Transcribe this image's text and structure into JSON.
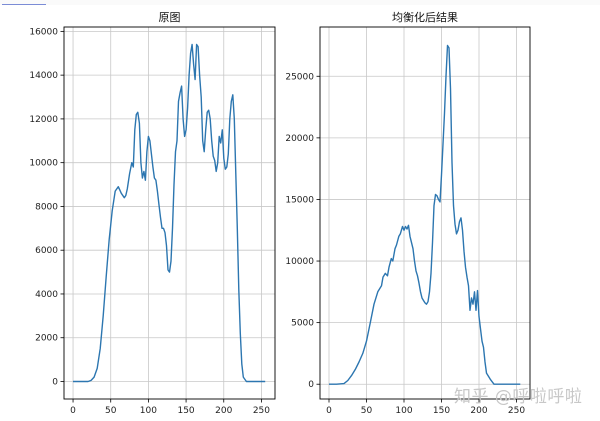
{
  "watermark": "知乎 @呼啦呼啦",
  "style": {
    "line_color": "#2c76b0",
    "grid_color": "#c8c8c8",
    "axis_color": "#000000"
  },
  "chart_data": [
    {
      "type": "line",
      "title": "原图",
      "xlabel": "",
      "ylabel": "",
      "xlim": [
        -12,
        268
      ],
      "ylim": [
        -800,
        16200
      ],
      "xticks": [
        0,
        50,
        100,
        150,
        200,
        250
      ],
      "yticks": [
        0,
        2000,
        4000,
        6000,
        8000,
        10000,
        12000,
        14000,
        16000
      ],
      "grid": true,
      "series": [
        {
          "x": [
            0,
            10,
            20,
            24,
            28,
            32,
            36,
            40,
            44,
            48,
            52,
            56,
            60,
            64,
            68,
            70,
            72,
            75,
            78,
            80,
            82,
            84,
            86,
            88,
            90,
            92,
            94,
            96,
            98,
            100,
            102,
            104,
            106,
            108,
            110,
            112,
            114,
            116,
            118,
            120,
            122,
            124,
            126,
            128,
            130,
            132,
            134,
            136,
            138,
            140,
            142,
            144,
            146,
            148,
            150,
            152,
            154,
            156,
            158,
            160,
            162,
            164,
            166,
            168,
            170,
            172,
            174,
            176,
            178,
            180,
            182,
            184,
            186,
            188,
            190,
            192,
            194,
            196,
            198,
            200,
            202,
            204,
            206,
            208,
            210,
            212,
            214,
            216,
            218,
            220,
            222,
            224,
            226,
            230,
            240,
            250,
            255
          ],
          "y": [
            0,
            0,
            0,
            50,
            200,
            600,
            1500,
            3000,
            4800,
            6500,
            7800,
            8700,
            8900,
            8600,
            8400,
            8500,
            8800,
            9500,
            10000,
            9800,
            11500,
            12200,
            12300,
            11800,
            10000,
            9300,
            9600,
            9200,
            10500,
            11200,
            11000,
            10400,
            9800,
            9300,
            9200,
            8700,
            8100,
            7500,
            7000,
            7000,
            6800,
            6200,
            5100,
            5000,
            5500,
            7000,
            9000,
            10500,
            11000,
            12800,
            13200,
            13500,
            12000,
            11200,
            11500,
            12500,
            14000,
            15000,
            15400,
            14500,
            13800,
            15400,
            15300,
            14000,
            13000,
            11000,
            10500,
            11500,
            12300,
            12400,
            12000,
            11000,
            10300,
            10100,
            9600,
            10000,
            11200,
            10900,
            11500,
            10200,
            9700,
            9800,
            10400,
            12000,
            12800,
            13100,
            12000,
            9500,
            7000,
            4200,
            2200,
            800,
            200,
            0,
            0,
            0,
            0
          ]
        }
      ]
    },
    {
      "type": "line",
      "title": "均衡化后结果",
      "xlabel": "",
      "ylabel": "",
      "xlim": [
        -12,
        268
      ],
      "ylim": [
        -1200,
        29000
      ],
      "xticks": [
        0,
        50,
        100,
        150,
        200,
        250
      ],
      "yticks": [
        0,
        5000,
        10000,
        15000,
        20000,
        25000
      ],
      "grid": true,
      "series": [
        {
          "x": [
            0,
            10,
            20,
            25,
            30,
            35,
            40,
            45,
            50,
            55,
            60,
            65,
            70,
            72,
            75,
            78,
            80,
            83,
            85,
            88,
            90,
            93,
            95,
            98,
            100,
            102,
            104,
            106,
            108,
            110,
            112,
            114,
            116,
            118,
            120,
            122,
            124,
            126,
            128,
            130,
            132,
            134,
            136,
            138,
            140,
            142,
            144,
            146,
            148,
            150,
            152,
            154,
            156,
            158,
            160,
            162,
            164,
            166,
            168,
            170,
            172,
            174,
            176,
            178,
            180,
            182,
            184,
            186,
            188,
            190,
            192,
            194,
            196,
            198,
            200,
            202,
            204,
            206,
            208,
            210,
            215,
            220,
            230,
            240,
            250,
            255
          ],
          "y": [
            0,
            0,
            50,
            300,
            700,
            1200,
            1800,
            2500,
            3500,
            5000,
            6500,
            7500,
            8000,
            8700,
            9000,
            8800,
            9500,
            10200,
            10000,
            11000,
            11300,
            12000,
            12200,
            12800,
            12500,
            12800,
            12600,
            12900,
            12000,
            11500,
            11000,
            10000,
            9200,
            8800,
            8200,
            7500,
            7000,
            6800,
            6600,
            6500,
            6700,
            7500,
            9000,
            11500,
            14500,
            15400,
            15300,
            15000,
            14800,
            17000,
            19500,
            22000,
            25000,
            27500,
            27300,
            24000,
            18000,
            14500,
            13000,
            12200,
            12500,
            13200,
            13500,
            12500,
            10800,
            9500,
            8700,
            8000,
            6000,
            7000,
            6500,
            7500,
            6000,
            7600,
            5500,
            4500,
            3500,
            3000,
            1800,
            900,
            400,
            0,
            0,
            0,
            0,
            0
          ]
        }
      ]
    }
  ]
}
